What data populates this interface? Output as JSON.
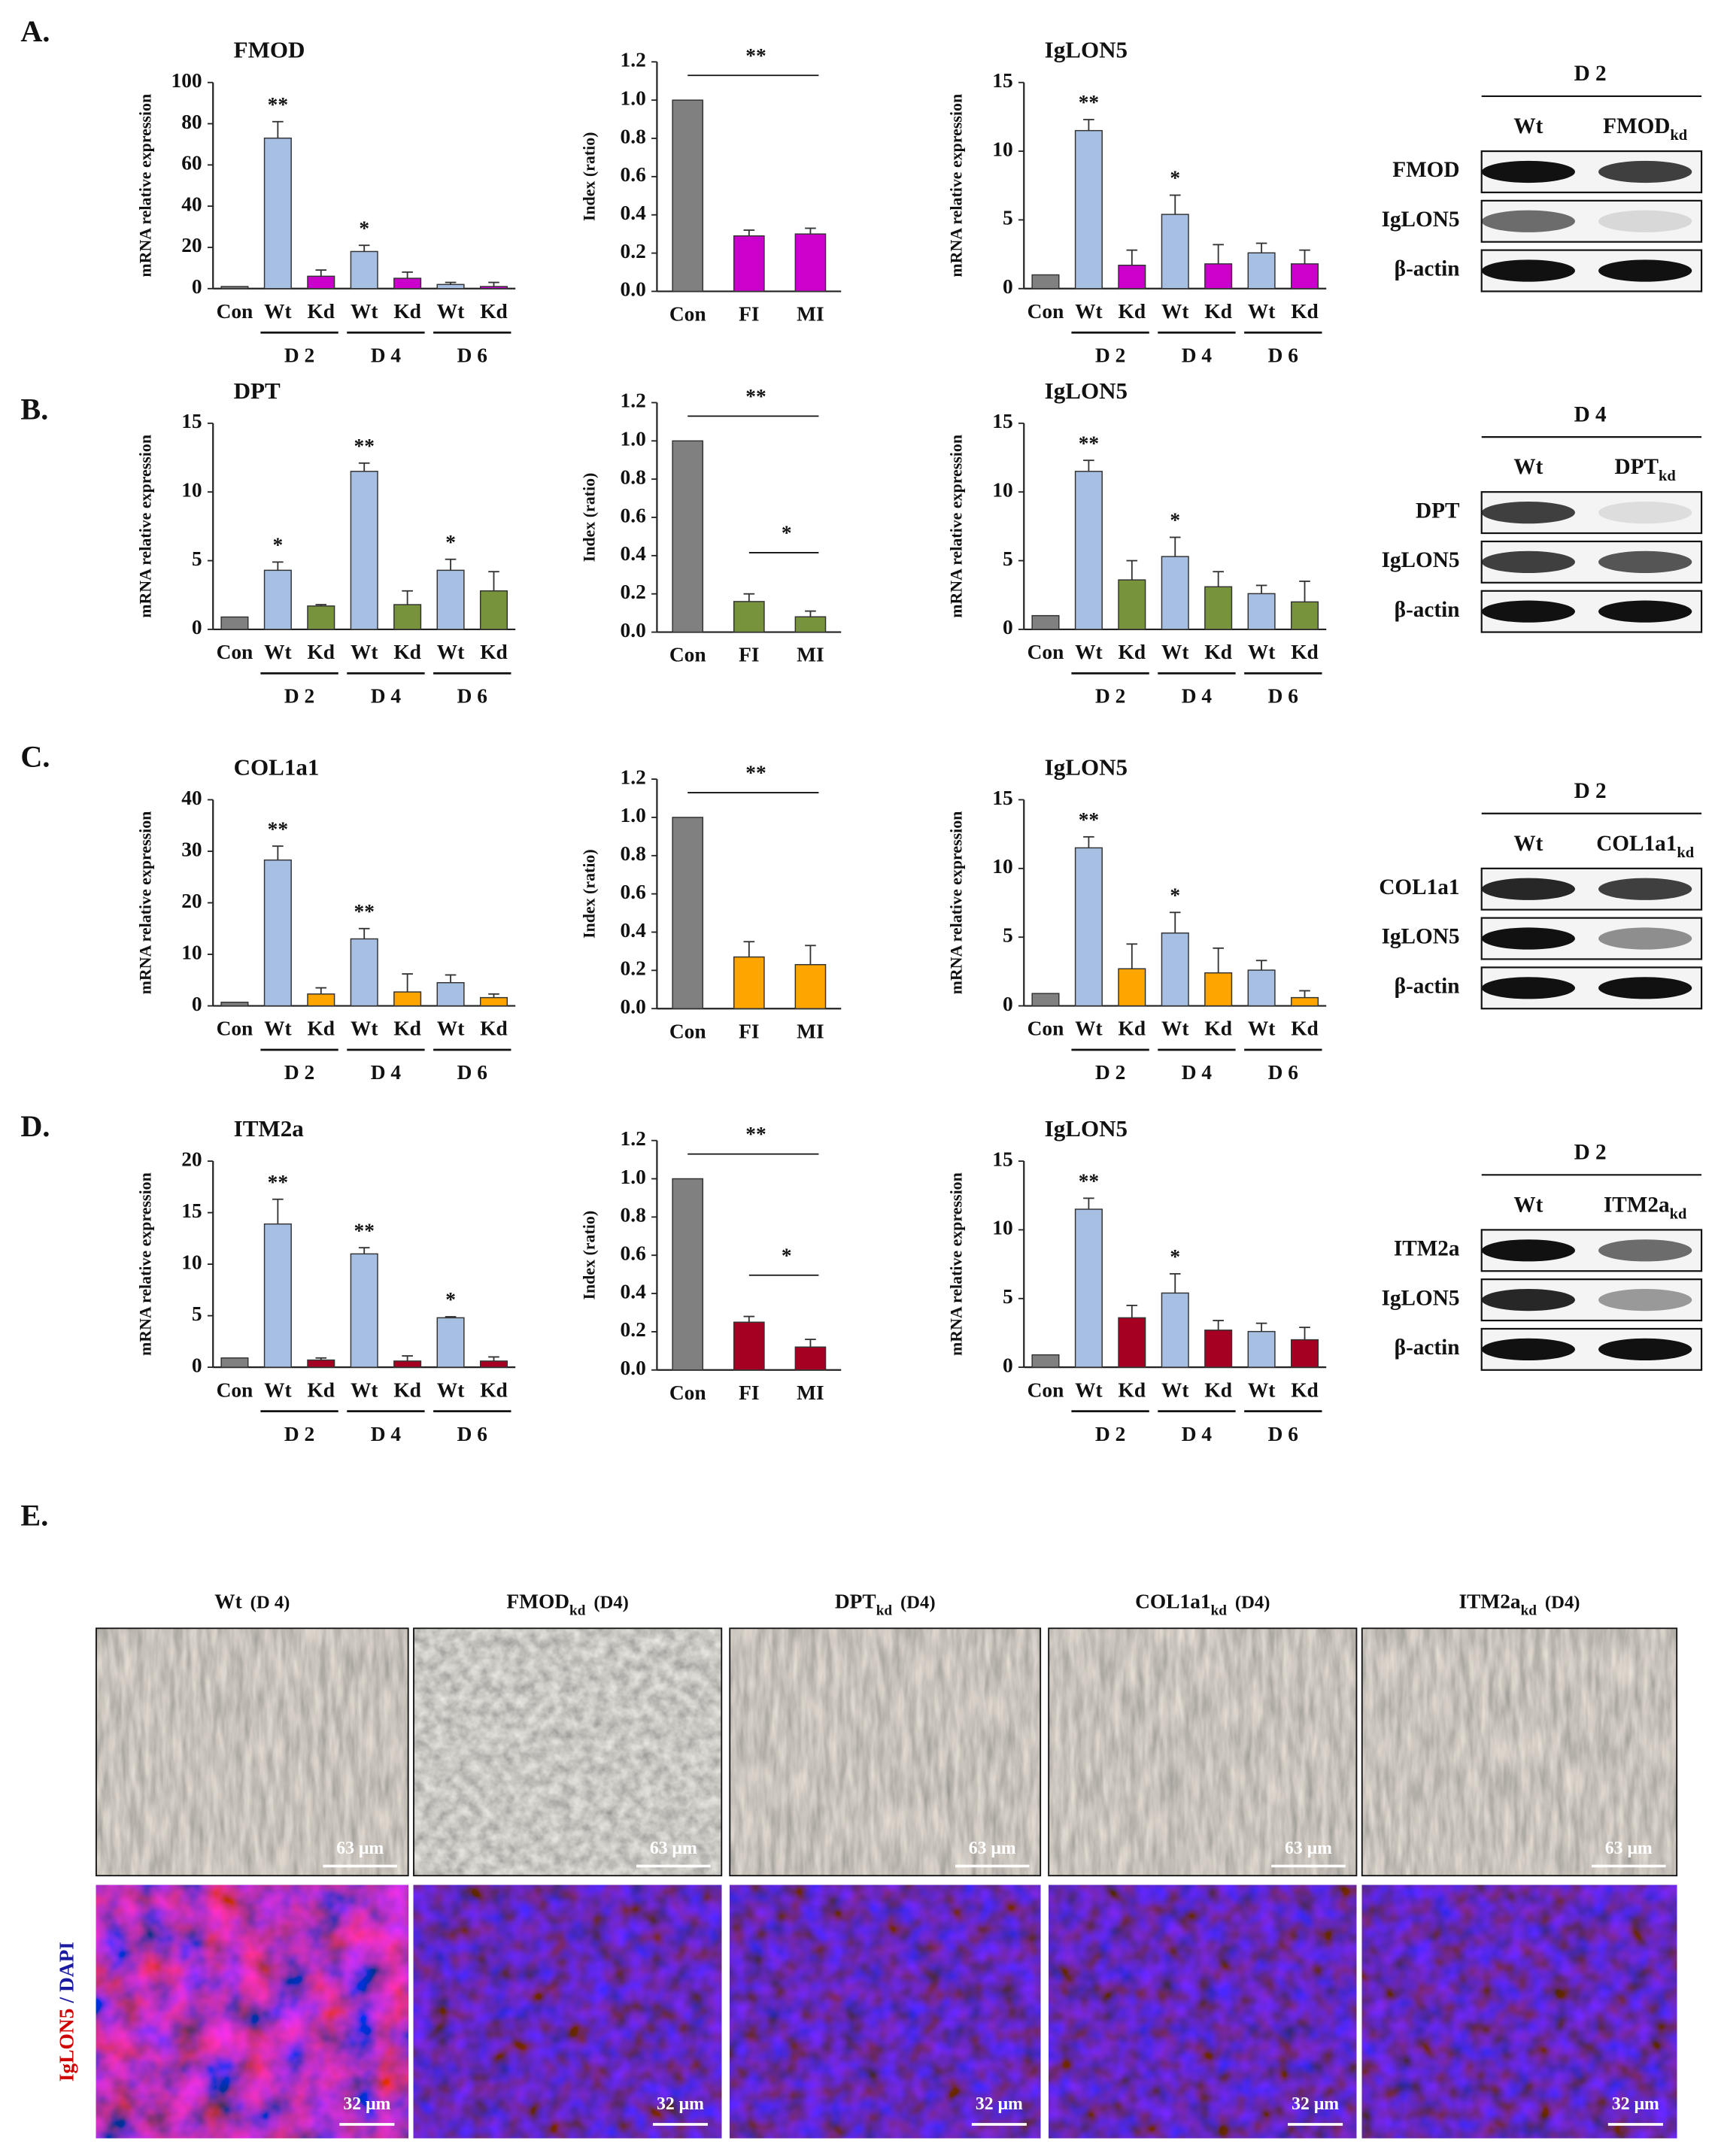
{
  "panel_labels": [
    "A.",
    "B.",
    "C.",
    "D.",
    "E."
  ],
  "chart_data": [
    {
      "type": "bar",
      "title": "FMOD",
      "y_label": "mRNA relative expression",
      "categories": [
        "Con",
        "Wt",
        "Kd",
        "Wt",
        "Kd",
        "Wt",
        "Kd"
      ],
      "groups": [
        "D 2",
        "D 4",
        "D 6"
      ],
      "values": [
        1,
        73,
        6,
        18,
        5,
        2,
        1
      ],
      "errors": [
        null,
        8,
        3,
        3,
        3,
        1,
        2
      ],
      "significance": [
        null,
        "**",
        null,
        "*",
        null,
        null,
        null
      ],
      "colors": {
        "Con": "#808080",
        "Wt": "#a6bfe3",
        "Kd": "#cc00cc"
      },
      "ylim": [
        0,
        100
      ],
      "yticks": [
        0,
        20,
        40,
        60,
        80,
        100
      ]
    },
    {
      "type": "bar",
      "y_label": "Index (ratio)",
      "categories": [
        "Con",
        "FI",
        "MI"
      ],
      "values": [
        1.0,
        0.29,
        0.3
      ],
      "errors": [
        null,
        0.03,
        0.03
      ],
      "brackets": [
        {
          "label": "**",
          "between": [
            "Con",
            "MI"
          ]
        }
      ],
      "colors": {
        "Con": "#808080",
        "FI": "#cc00cc",
        "MI": "#cc00cc"
      },
      "ylim": [
        0,
        1.2
      ],
      "yticks": [
        {
          "value": 0,
          "label": "0.0"
        },
        0.2,
        0.4,
        0.6,
        0.8,
        {
          "value": 1,
          "label": "1.0"
        },
        1.2
      ]
    },
    {
      "type": "bar",
      "title": "IgLON5",
      "y_label": "mRNA relative expression",
      "categories": [
        "Con",
        "Wt",
        "Kd",
        "Wt",
        "Kd",
        "Wt",
        "Kd"
      ],
      "groups": [
        "D 2",
        "D 4",
        "D 6"
      ],
      "values": [
        1,
        11.5,
        1.7,
        5.4,
        1.8,
        2.6,
        1.8
      ],
      "errors": [
        null,
        0.8,
        1.1,
        1.4,
        1.4,
        0.7,
        1.0
      ],
      "significance": [
        null,
        "**",
        null,
        "*",
        null,
        null,
        null
      ],
      "colors": {
        "Con": "#808080",
        "Wt": "#a6bfe3",
        "Kd": "#cc00cc"
      },
      "ylim": [
        0,
        15
      ],
      "yticks": [
        0,
        5,
        10,
        15
      ]
    },
    {
      "type": "bar",
      "title": "DPT",
      "y_label": "mRNA relative expression",
      "categories": [
        "Con",
        "Wt",
        "Kd",
        "Wt",
        "Kd",
        "Wt",
        "Kd"
      ],
      "groups": [
        "D 2",
        "D 4",
        "D 6"
      ],
      "values": [
        0.9,
        4.3,
        1.7,
        11.5,
        1.8,
        4.3,
        2.8
      ],
      "errors": [
        null,
        0.6,
        0.1,
        0.6,
        1.0,
        0.8,
        1.4
      ],
      "significance": [
        null,
        "*",
        null,
        "**",
        null,
        "*",
        null
      ],
      "colors": {
        "Con": "#808080",
        "Wt": "#a6bfe3",
        "Kd": "#77933c"
      },
      "ylim": [
        0,
        15
      ],
      "yticks": [
        0,
        5,
        10,
        15
      ]
    },
    {
      "type": "bar",
      "y_label": "Index (ratio)",
      "categories": [
        "Con",
        "FI",
        "MI"
      ],
      "values": [
        1.0,
        0.16,
        0.08
      ],
      "errors": [
        null,
        0.04,
        0.03
      ],
      "brackets": [
        {
          "label": "**",
          "between": [
            "Con",
            "MI"
          ]
        },
        {
          "label": "*",
          "between": [
            "FI",
            "MI"
          ]
        }
      ],
      "colors": {
        "Con": "#808080",
        "FI": "#77933c",
        "MI": "#77933c"
      },
      "ylim": [
        0,
        1.2
      ],
      "yticks": [
        {
          "value": 0,
          "label": "0.0"
        },
        0.2,
        0.4,
        0.6,
        0.8,
        {
          "value": 1,
          "label": "1.0"
        },
        1.2
      ]
    },
    {
      "type": "bar",
      "title": "IgLON5",
      "y_label": "mRNA relative expression",
      "categories": [
        "Con",
        "Wt",
        "Kd",
        "Wt",
        "Kd",
        "Wt",
        "Kd"
      ],
      "groups": [
        "D 2",
        "D 4",
        "D 6"
      ],
      "values": [
        1,
        11.5,
        3.6,
        5.3,
        3.1,
        2.6,
        2.0
      ],
      "errors": [
        null,
        0.8,
        1.4,
        1.4,
        1.1,
        0.6,
        1.5
      ],
      "significance": [
        null,
        "**",
        null,
        "*",
        null,
        null,
        null
      ],
      "colors": {
        "Con": "#808080",
        "Wt": "#a6bfe3",
        "Kd": "#77933c"
      },
      "ylim": [
        0,
        15
      ],
      "yticks": [
        0,
        5,
        10,
        15
      ]
    },
    {
      "type": "bar",
      "title": "COL1a1",
      "y_label": "mRNA relative expression",
      "categories": [
        "Con",
        "Wt",
        "Kd",
        "Wt",
        "Kd",
        "Wt",
        "Kd"
      ],
      "groups": [
        "D 2",
        "D 4",
        "D 6"
      ],
      "values": [
        0.7,
        28.3,
        2.3,
        13,
        2.7,
        4.5,
        1.6
      ],
      "errors": [
        null,
        2.7,
        1.2,
        2,
        3.5,
        1.5,
        0.7
      ],
      "significance": [
        null,
        "**",
        null,
        "**",
        null,
        null,
        null
      ],
      "colors": {
        "Con": "#808080",
        "Wt": "#a6bfe3",
        "Kd": "#ffa500"
      },
      "ylim": [
        0,
        40
      ],
      "yticks": [
        0,
        10,
        20,
        30,
        40
      ]
    },
    {
      "type": "bar",
      "y_label": "Index (ratio)",
      "categories": [
        "Con",
        "FI",
        "MI"
      ],
      "values": [
        1.0,
        0.27,
        0.23
      ],
      "errors": [
        null,
        0.08,
        0.1
      ],
      "brackets": [
        {
          "label": "**",
          "between": [
            "Con",
            "MI"
          ]
        }
      ],
      "colors": {
        "Con": "#808080",
        "FI": "#ffa500",
        "MI": "#ffa500"
      },
      "ylim": [
        0,
        1.2
      ],
      "yticks": [
        {
          "value": 0,
          "label": "0.0"
        },
        0.2,
        0.4,
        0.6,
        0.8,
        {
          "value": 1,
          "label": "1.0"
        },
        1.2
      ]
    },
    {
      "type": "bar",
      "title": "IgLON5",
      "y_label": "mRNA relative expression",
      "categories": [
        "Con",
        "Wt",
        "Kd",
        "Wt",
        "Kd",
        "Wt",
        "Kd"
      ],
      "groups": [
        "D 2",
        "D 4",
        "D 6"
      ],
      "values": [
        0.9,
        11.5,
        2.7,
        5.3,
        2.4,
        2.6,
        0.6
      ],
      "errors": [
        null,
        0.8,
        1.8,
        1.5,
        1.8,
        0.7,
        0.5
      ],
      "significance": [
        null,
        "**",
        null,
        "*",
        null,
        null,
        null
      ],
      "colors": {
        "Con": "#808080",
        "Wt": "#a6bfe3",
        "Kd": "#ffa500"
      },
      "ylim": [
        0,
        15
      ],
      "yticks": [
        0,
        5,
        10,
        15
      ]
    },
    {
      "type": "bar",
      "title": "ITM2a",
      "y_label": "mRNA relative expression",
      "categories": [
        "Con",
        "Wt",
        "Kd",
        "Wt",
        "Kd",
        "Wt",
        "Kd"
      ],
      "groups": [
        "D 2",
        "D 4",
        "D 6"
      ],
      "values": [
        0.9,
        13.9,
        0.7,
        11,
        0.6,
        4.8,
        0.6
      ],
      "errors": [
        null,
        2.4,
        0.2,
        0.6,
        0.5,
        0.1,
        0.4
      ],
      "significance": [
        null,
        "**",
        null,
        "**",
        null,
        "*",
        null
      ],
      "colors": {
        "Con": "#808080",
        "Wt": "#a6bfe3",
        "Kd": "#a50021"
      },
      "ylim": [
        0,
        20
      ],
      "yticks": [
        0,
        5,
        10,
        15,
        20
      ]
    },
    {
      "type": "bar",
      "y_label": "Index (ratio)",
      "categories": [
        "Con",
        "FI",
        "MI"
      ],
      "values": [
        1.0,
        0.25,
        0.12
      ],
      "errors": [
        null,
        0.03,
        0.04
      ],
      "brackets": [
        {
          "label": "**",
          "between": [
            "Con",
            "MI"
          ]
        },
        {
          "label": "*",
          "between": [
            "FI",
            "MI"
          ]
        }
      ],
      "colors": {
        "Con": "#808080",
        "FI": "#a50021",
        "MI": "#a50021"
      },
      "ylim": [
        0,
        1.2
      ],
      "yticks": [
        {
          "value": 0,
          "label": "0.0"
        },
        0.2,
        0.4,
        0.6,
        0.8,
        {
          "value": 1,
          "label": "1.0"
        },
        1.2
      ]
    },
    {
      "type": "bar",
      "title": "IgLON5",
      "y_label": "mRNA relative expression",
      "categories": [
        "Con",
        "Wt",
        "Kd",
        "Wt",
        "Kd",
        "Wt",
        "Kd"
      ],
      "groups": [
        "D 2",
        "D 4",
        "D 6"
      ],
      "values": [
        0.9,
        11.5,
        3.6,
        5.4,
        2.7,
        2.6,
        2.0
      ],
      "errors": [
        null,
        0.8,
        0.9,
        1.4,
        0.7,
        0.6,
        0.9
      ],
      "significance": [
        null,
        "**",
        null,
        "*",
        null,
        null,
        null
      ],
      "colors": {
        "Con": "#808080",
        "Wt": "#a6bfe3",
        "Kd": "#a50021"
      },
      "ylim": [
        0,
        15
      ],
      "yticks": [
        0,
        5,
        10,
        15
      ]
    }
  ],
  "blots": [
    {
      "day": "D 2",
      "columns": [
        {
          "name": "Wt"
        },
        {
          "name": "FMOD",
          "sub": "kd"
        }
      ],
      "rows": [
        "FMOD",
        "IgLON5",
        "β-actin"
      ]
    },
    {
      "day": "D 4",
      "columns": [
        {
          "name": "Wt"
        },
        {
          "name": "DPT",
          "sub": "kd"
        }
      ],
      "rows": [
        "DPT",
        "IgLON5",
        "β-actin"
      ]
    },
    {
      "day": "D 2",
      "columns": [
        {
          "name": "Wt"
        },
        {
          "name": "COL1a1",
          "sub": "kd"
        }
      ],
      "rows": [
        "COL1a1",
        "IgLON5",
        "β-actin"
      ]
    },
    {
      "day": "D 2",
      "columns": [
        {
          "name": "Wt"
        },
        {
          "name": "ITM2a",
          "sub": "kd"
        }
      ],
      "rows": [
        "ITM2a",
        "IgLON5",
        "β-actin"
      ]
    }
  ],
  "imaging": {
    "conditions": [
      {
        "name": "Wt",
        "cond": "(D 4)"
      },
      {
        "name": "FMOD",
        "sub": "kd",
        "cond": "(D4)"
      },
      {
        "name": "DPT",
        "sub": "kd",
        "cond": "(D4)"
      },
      {
        "name": "COL1a1",
        "sub": "kd",
        "cond": "(D4)"
      },
      {
        "name": "ITM2a",
        "sub": "kd",
        "cond": "(D4)"
      }
    ],
    "scale_top": "63 μm",
    "scale_bottom": "32 μm",
    "stain": [
      "IgLON5",
      "/ DAPI"
    ]
  }
}
